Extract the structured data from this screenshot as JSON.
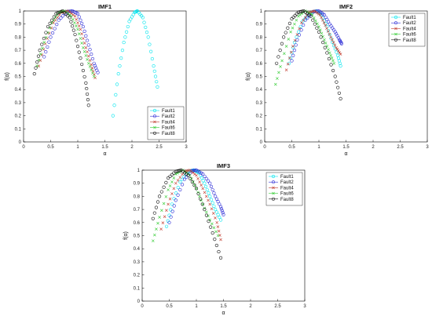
{
  "chart_data": [
    {
      "type": "scatter",
      "title": "IMF1",
      "xlabel": "α",
      "ylabel": "f(α)",
      "xlim": [
        0,
        3
      ],
      "ylim": [
        0,
        1
      ],
      "xticks": [
        "0",
        "0.5",
        "1",
        "1.5",
        "2",
        "2.5",
        "3"
      ],
      "yticks": [
        "0",
        "0.1",
        "0.2",
        "0.3",
        "0.4",
        "0.5",
        "0.6",
        "0.7",
        "0.8",
        "0.9",
        "1"
      ],
      "grid": false,
      "legend_position": "bottom-right",
      "series": [
        {
          "name": "Fault1",
          "color": "#00e5ee",
          "marker": "circle",
          "points": [
            [
              1.65,
              0.2
            ],
            [
              1.75,
              0.52
            ],
            [
              1.85,
              0.76
            ],
            [
              1.95,
              0.92
            ],
            [
              2.05,
              0.99
            ],
            [
              2.1,
              1.0
            ],
            [
              2.2,
              0.95
            ],
            [
              2.3,
              0.8
            ],
            [
              2.4,
              0.58
            ],
            [
              2.47,
              0.42
            ]
          ]
        },
        {
          "name": "Fault2",
          "color": "#2a2ad6",
          "marker": "circle",
          "points": [
            [
              0.38,
              0.65
            ],
            [
              0.5,
              0.8
            ],
            [
              0.65,
              0.93
            ],
            [
              0.8,
              0.995
            ],
            [
              0.9,
              1.0
            ],
            [
              1.0,
              0.98
            ],
            [
              1.1,
              0.88
            ],
            [
              1.2,
              0.74
            ],
            [
              1.3,
              0.6
            ],
            [
              1.37,
              0.53
            ]
          ]
        },
        {
          "name": "Fault4",
          "color": "#c0392b",
          "marker": "x",
          "points": [
            [
              0.28,
              0.58
            ],
            [
              0.4,
              0.75
            ],
            [
              0.55,
              0.91
            ],
            [
              0.7,
              0.99
            ],
            [
              0.82,
              1.0
            ],
            [
              0.95,
              0.96
            ],
            [
              1.05,
              0.86
            ],
            [
              1.15,
              0.72
            ],
            [
              1.25,
              0.59
            ],
            [
              1.32,
              0.49
            ]
          ]
        },
        {
          "name": "Fault6",
          "color": "#33cc33",
          "marker": "x",
          "points": [
            [
              0.25,
              0.58
            ],
            [
              0.38,
              0.76
            ],
            [
              0.52,
              0.91
            ],
            [
              0.65,
              0.99
            ],
            [
              0.76,
              1.0
            ],
            [
              0.88,
              0.96
            ],
            [
              1.0,
              0.86
            ],
            [
              1.1,
              0.72
            ],
            [
              1.2,
              0.6
            ],
            [
              1.3,
              0.5
            ]
          ]
        },
        {
          "name": "Fault8",
          "color": "#111111",
          "marker": "circle",
          "points": [
            [
              0.2,
              0.52
            ],
            [
              0.3,
              0.7
            ],
            [
              0.45,
              0.88
            ],
            [
              0.6,
              0.98
            ],
            [
              0.72,
              1.0
            ],
            [
              0.85,
              0.95
            ],
            [
              0.95,
              0.82
            ],
            [
              1.05,
              0.64
            ],
            [
              1.15,
              0.45
            ],
            [
              1.2,
              0.28
            ]
          ]
        }
      ]
    },
    {
      "type": "scatter",
      "title": "IMF2",
      "xlabel": "α",
      "ylabel": "f(α)",
      "xlim": [
        0,
        3
      ],
      "ylim": [
        0,
        1
      ],
      "xticks": [
        "0",
        "0.5",
        "1",
        "1.5",
        "2",
        "2.5",
        "3"
      ],
      "yticks": [
        "0",
        "0.1",
        "0.2",
        "0.3",
        "0.4",
        "0.5",
        "0.6",
        "0.7",
        "0.8",
        "0.9",
        "1"
      ],
      "grid": false,
      "legend_position": "top-right",
      "series": [
        {
          "name": "Fault1",
          "color": "#00e5ee",
          "marker": "circle",
          "points": [
            [
              0.45,
              0.6
            ],
            [
              0.55,
              0.76
            ],
            [
              0.7,
              0.92
            ],
            [
              0.85,
              0.99
            ],
            [
              0.95,
              1.0
            ],
            [
              1.05,
              0.97
            ],
            [
              1.15,
              0.88
            ],
            [
              1.25,
              0.76
            ],
            [
              1.35,
              0.66
            ],
            [
              1.4,
              0.58
            ]
          ]
        },
        {
          "name": "Fault2",
          "color": "#2a2ad6",
          "marker": "circle",
          "points": [
            [
              0.5,
              0.62
            ],
            [
              0.6,
              0.78
            ],
            [
              0.75,
              0.93
            ],
            [
              0.9,
              0.995
            ],
            [
              1.0,
              1.0
            ],
            [
              1.1,
              0.97
            ],
            [
              1.2,
              0.9
            ],
            [
              1.3,
              0.84
            ],
            [
              1.38,
              0.78
            ],
            [
              1.42,
              0.75
            ]
          ]
        },
        {
          "name": "Fault4",
          "color": "#c0392b",
          "marker": "x",
          "points": [
            [
              0.4,
              0.55
            ],
            [
              0.52,
              0.73
            ],
            [
              0.68,
              0.91
            ],
            [
              0.82,
              0.99
            ],
            [
              0.92,
              1.0
            ],
            [
              1.02,
              0.97
            ],
            [
              1.12,
              0.89
            ],
            [
              1.22,
              0.8
            ],
            [
              1.32,
              0.72
            ],
            [
              1.4,
              0.67
            ]
          ]
        },
        {
          "name": "Fault6",
          "color": "#33cc33",
          "marker": "x",
          "points": [
            [
              0.2,
              0.44
            ],
            [
              0.32,
              0.62
            ],
            [
              0.48,
              0.84
            ],
            [
              0.62,
              0.96
            ],
            [
              0.75,
              1.0
            ],
            [
              0.88,
              0.97
            ],
            [
              1.0,
              0.88
            ],
            [
              1.1,
              0.78
            ],
            [
              1.2,
              0.68
            ],
            [
              1.28,
              0.6
            ]
          ]
        },
        {
          "name": "Fault8",
          "color": "#111111",
          "marker": "circle",
          "points": [
            [
              0.22,
              0.6
            ],
            [
              0.35,
              0.8
            ],
            [
              0.5,
              0.94
            ],
            [
              0.62,
              0.99
            ],
            [
              0.72,
              1.0
            ],
            [
              0.85,
              0.96
            ],
            [
              1.0,
              0.84
            ],
            [
              1.15,
              0.68
            ],
            [
              1.3,
              0.5
            ],
            [
              1.4,
              0.33
            ]
          ]
        }
      ]
    },
    {
      "type": "scatter",
      "title": "IMF3",
      "xlabel": "α",
      "ylabel": "f(α)",
      "xlim": [
        0,
        3
      ],
      "ylim": [
        0,
        1
      ],
      "xticks": [
        "0",
        "0.5",
        "1",
        "1.5",
        "2",
        "2.5",
        "3"
      ],
      "yticks": [
        "0",
        "0.1",
        "0.2",
        "0.3",
        "0.4",
        "0.5",
        "0.6",
        "0.7",
        "0.8",
        "0.9",
        "1"
      ],
      "grid": false,
      "legend_position": "top-right",
      "series": [
        {
          "name": "Fault1",
          "color": "#00e5ee",
          "marker": "circle",
          "points": [
            [
              0.45,
              0.57
            ],
            [
              0.55,
              0.74
            ],
            [
              0.7,
              0.91
            ],
            [
              0.85,
              0.99
            ],
            [
              0.95,
              1.0
            ],
            [
              1.05,
              0.98
            ],
            [
              1.15,
              0.9
            ],
            [
              1.25,
              0.8
            ],
            [
              1.35,
              0.7
            ],
            [
              1.45,
              0.62
            ]
          ]
        },
        {
          "name": "Fault2",
          "color": "#2a2ad6",
          "marker": "circle",
          "points": [
            [
              0.5,
              0.6
            ],
            [
              0.62,
              0.77
            ],
            [
              0.78,
              0.93
            ],
            [
              0.92,
              0.995
            ],
            [
              1.0,
              1.0
            ],
            [
              1.12,
              0.97
            ],
            [
              1.25,
              0.9
            ],
            [
              1.35,
              0.8
            ],
            [
              1.45,
              0.72
            ],
            [
              1.5,
              0.66
            ]
          ]
        },
        {
          "name": "Fault4",
          "color": "#c0392b",
          "marker": "x",
          "points": [
            [
              0.35,
              0.55
            ],
            [
              0.48,
              0.74
            ],
            [
              0.62,
              0.9
            ],
            [
              0.78,
              0.99
            ],
            [
              0.88,
              1.0
            ],
            [
              1.0,
              0.96
            ],
            [
              1.12,
              0.86
            ],
            [
              1.25,
              0.74
            ],
            [
              1.38,
              0.6
            ],
            [
              1.45,
              0.47
            ]
          ]
        },
        {
          "name": "Fault6",
          "color": "#33cc33",
          "marker": "x",
          "points": [
            [
              0.2,
              0.46
            ],
            [
              0.32,
              0.64
            ],
            [
              0.48,
              0.85
            ],
            [
              0.62,
              0.97
            ],
            [
              0.75,
              1.0
            ],
            [
              0.88,
              0.96
            ],
            [
              1.0,
              0.86
            ],
            [
              1.12,
              0.74
            ],
            [
              1.25,
              0.62
            ],
            [
              1.4,
              0.5
            ]
          ]
        },
        {
          "name": "Fault8",
          "color": "#111111",
          "marker": "circle",
          "points": [
            [
              0.2,
              0.63
            ],
            [
              0.32,
              0.8
            ],
            [
              0.48,
              0.94
            ],
            [
              0.62,
              0.99
            ],
            [
              0.72,
              1.0
            ],
            [
              0.85,
              0.96
            ],
            [
              1.0,
              0.86
            ],
            [
              1.15,
              0.7
            ],
            [
              1.3,
              0.52
            ],
            [
              1.45,
              0.33
            ]
          ]
        }
      ]
    }
  ]
}
